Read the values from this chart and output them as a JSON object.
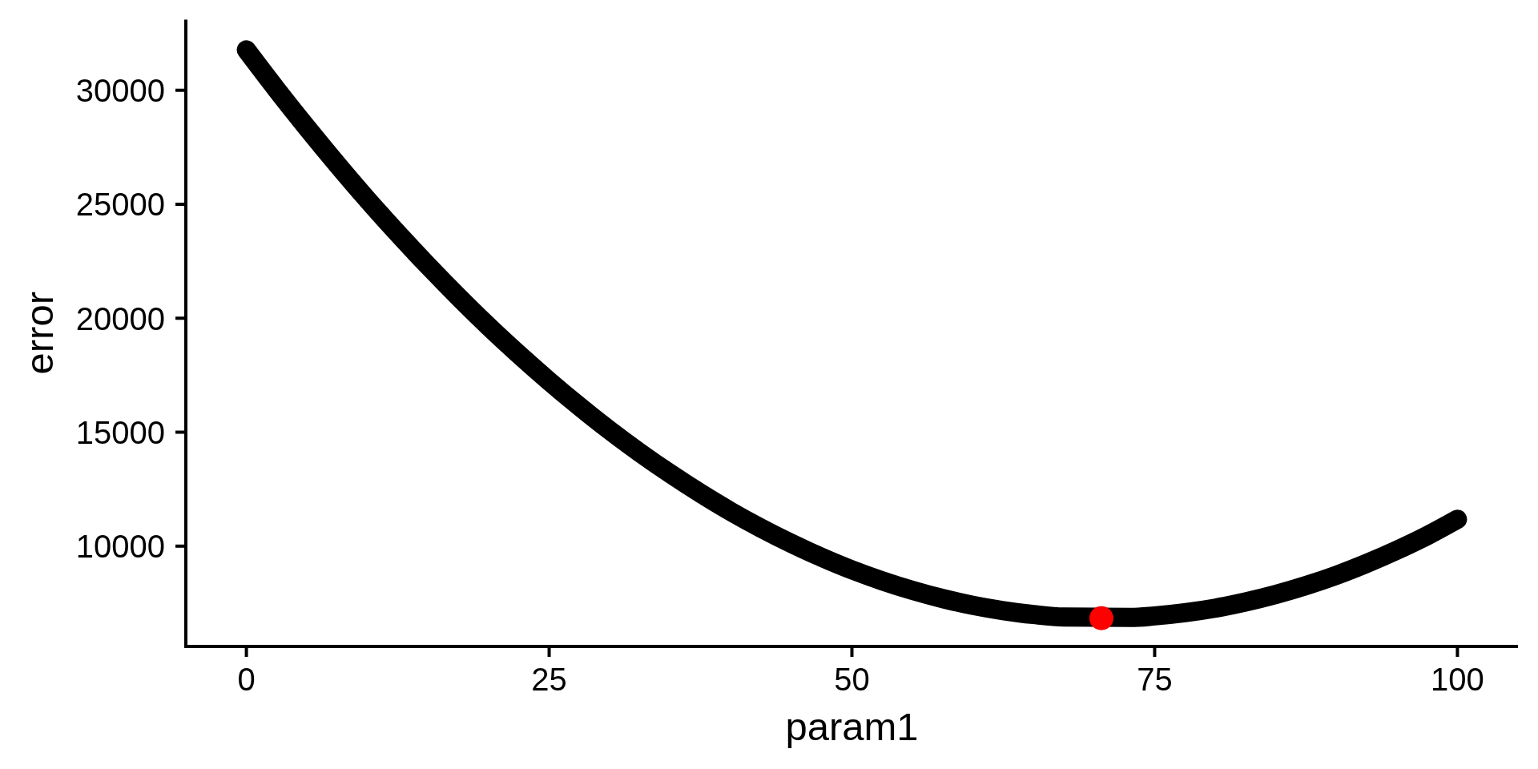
{
  "chart_data": {
    "type": "line",
    "xlabel": "param1",
    "ylabel": "error",
    "xlim": [
      -5,
      105
    ],
    "ylim": [
      5600,
      33100
    ],
    "xticks": [
      0,
      25,
      50,
      75,
      100
    ],
    "yticks": [
      10000,
      15000,
      20000,
      25000,
      30000
    ],
    "series": [
      {
        "color": "#000000",
        "x": [
          0,
          2.5,
          5,
          7.5,
          10,
          12.5,
          15,
          17.5,
          20,
          22.5,
          25,
          27.5,
          30,
          32.5,
          35,
          37.5,
          40,
          42.5,
          45,
          47.5,
          50,
          52.5,
          55,
          57.5,
          60,
          62.5,
          65,
          67.5,
          73,
          75,
          77.5,
          80,
          82.5,
          85,
          87.5,
          90,
          92.5,
          95,
          97.5,
          100
        ],
        "values": [
          31770,
          30030,
          28360,
          26750,
          25200,
          23720,
          22300,
          20940,
          19640,
          18410,
          17240,
          16130,
          15080,
          14100,
          13180,
          12320,
          11520,
          10790,
          10120,
          9510,
          8960,
          8480,
          8060,
          7700,
          7400,
          7170,
          7000,
          6890,
          6870,
          6940,
          7080,
          7280,
          7550,
          7880,
          8270,
          8720,
          9240,
          9820,
          10460,
          11180
        ]
      },
      {
        "type": "scatter",
        "color": "#ff0000",
        "marker": "circle",
        "x": [
          70.6
        ],
        "values": [
          6840
        ]
      }
    ]
  }
}
